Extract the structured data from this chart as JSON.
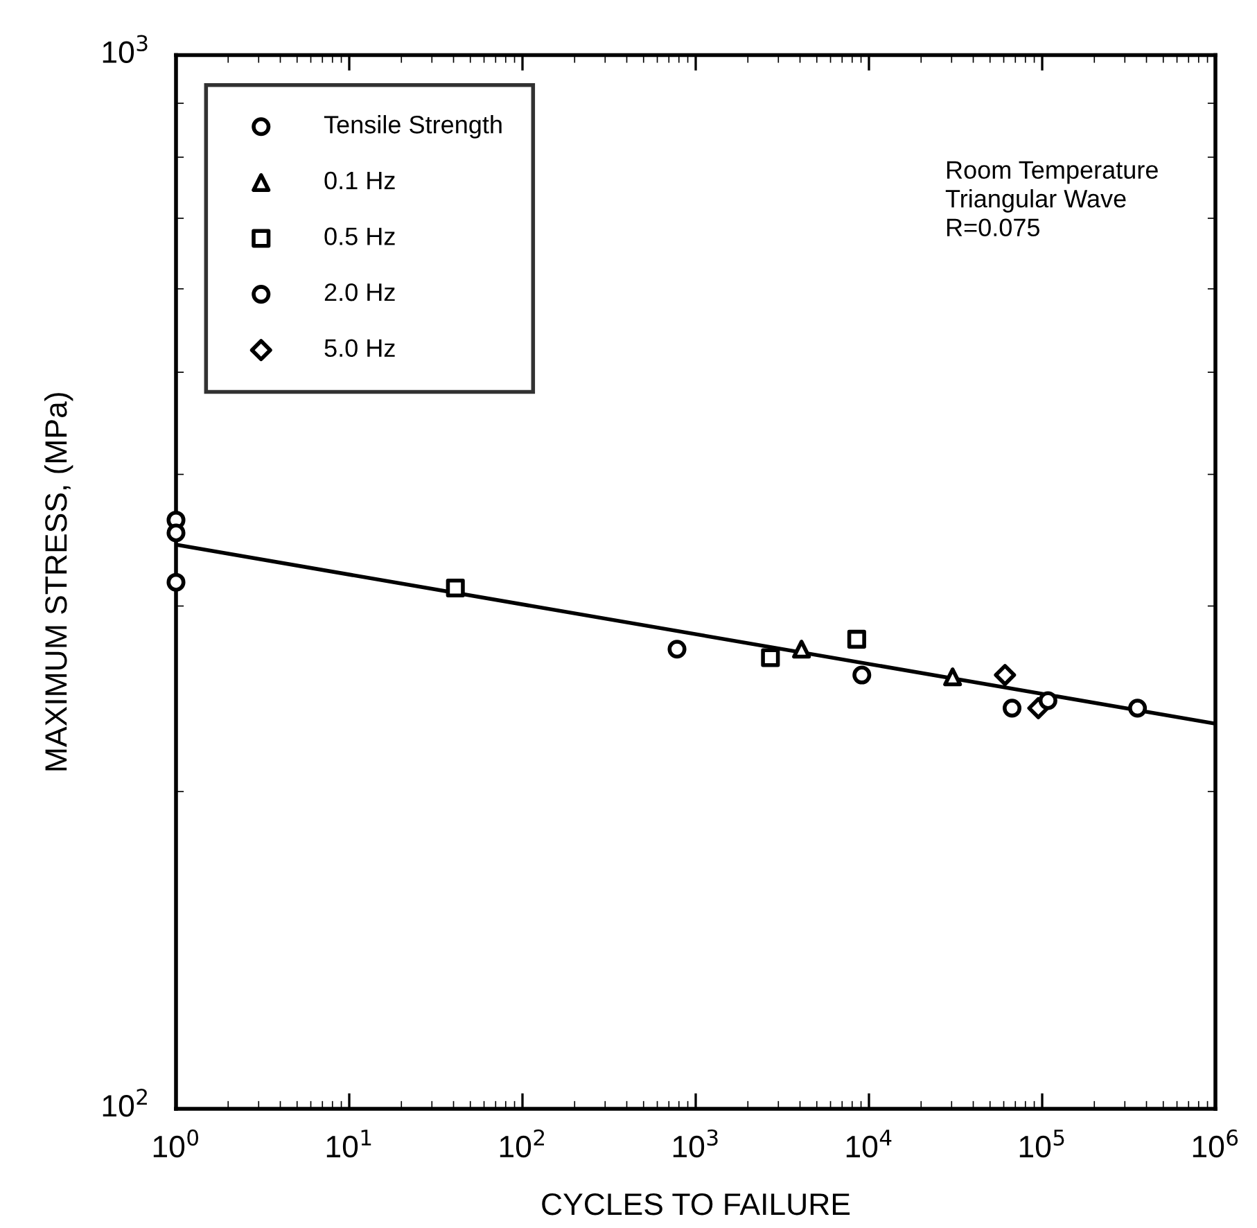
{
  "chart_data": {
    "type": "scatter",
    "log": "xy",
    "xlabel": "CYCLES TO FAILURE",
    "ylabel": "MAXIMUM STRESS, (MPa)",
    "xlim": [
      1,
      1000000
    ],
    "ylim": [
      100,
      1000
    ],
    "xticks": [
      {
        "value": 1,
        "label": "10$^{0}$"
      },
      {
        "value": 10,
        "label": "10$^{1}$"
      },
      {
        "value": 100,
        "label": "10$^{2}$"
      },
      {
        "value": 1000,
        "label": "10$^{3}$"
      },
      {
        "value": 10000,
        "label": "10$^{4}$"
      },
      {
        "value": 100000,
        "label": "10$^{5}$"
      },
      {
        "value": 1000000,
        "label": "10$^{6}$"
      }
    ],
    "yticks": [
      {
        "value": 100,
        "label": "10$^{2}$"
      },
      {
        "value": 1000,
        "label": "10$^{3}$"
      }
    ],
    "grid": false,
    "legend": "top left",
    "annotations": [
      "Room Temperature\nTriangular Wave\nR=0.075"
    ],
    "series": [
      {
        "name": "Tensile Strength",
        "color": "#000000",
        "marker": "circle",
        "x": [
          1,
          1,
          1
        ],
        "values": [
          362,
          352,
          316
        ]
      },
      {
        "name": "0.1 Hz",
        "color": "#000000",
        "marker": "triangle",
        "x": [
          4080,
          30400
        ],
        "values": [
          273,
          257
        ]
      },
      {
        "name": "0.5 Hz",
        "color": "#000000",
        "marker": "square",
        "x": [
          41,
          2700,
          8500
        ],
        "values": [
          312,
          268,
          279
        ]
      },
      {
        "name": "2.0 Hz",
        "color": "#000000",
        "marker": "circle",
        "x": [
          780,
          9100,
          67000,
          108000,
          355000
        ],
        "values": [
          273,
          258,
          240,
          244,
          240
        ]
      },
      {
        "name": "5.0 Hz",
        "color": "#000000",
        "marker": "diamond",
        "x": [
          61000,
          95000
        ],
        "values": [
          258,
          240
        ]
      },
      {
        "type": "line",
        "color": "#000000",
        "line_style": "solid",
        "marker": "none",
        "x": [
          1,
          1000000
        ],
        "values": [
          343,
          232
        ]
      }
    ]
  }
}
